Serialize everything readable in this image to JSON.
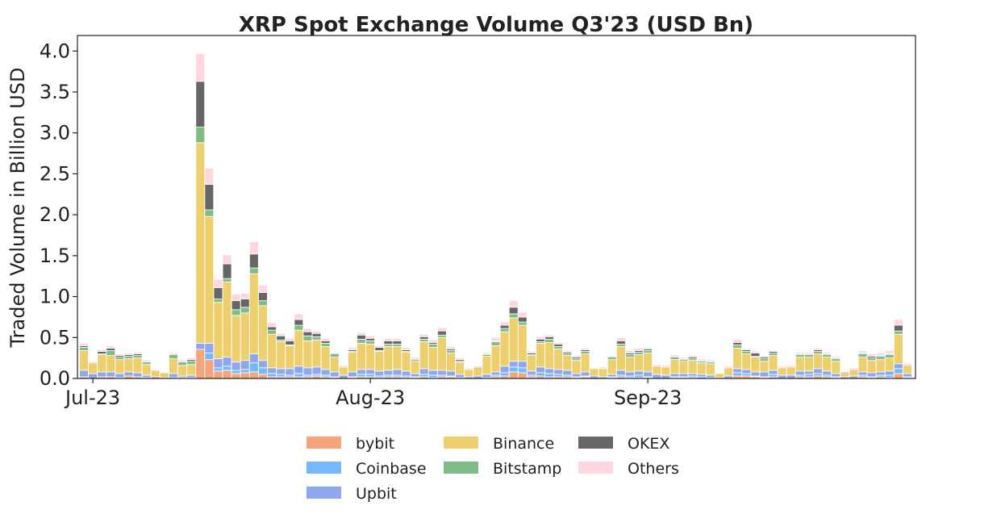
{
  "chart_data": {
    "type": "bar",
    "stacked": true,
    "title": "XRP Spot Exchange Volume Q3'23 (USD Bn)",
    "xlabel": "",
    "ylabel": "Traded Volume in Billion USD",
    "ylim": [
      0,
      4.19
    ],
    "yticks": [
      "0.0",
      "0.5",
      "1.0",
      "1.5",
      "2.0",
      "2.5",
      "3.0",
      "3.5",
      "4.0"
    ],
    "xticks": [
      {
        "date": "2023-07-01",
        "label": "Jul-23"
      },
      {
        "date": "2023-08-01",
        "label": "Aug-23"
      },
      {
        "date": "2023-09-01",
        "label": "Sep-23"
      }
    ],
    "grid": false,
    "legend_position": "bottom-center",
    "x": [
      "2023-06-30",
      "2023-07-01",
      "2023-07-02",
      "2023-07-03",
      "2023-07-04",
      "2023-07-05",
      "2023-07-06",
      "2023-07-07",
      "2023-07-08",
      "2023-07-09",
      "2023-07-10",
      "2023-07-11",
      "2023-07-12",
      "2023-07-13",
      "2023-07-14",
      "2023-07-15",
      "2023-07-16",
      "2023-07-17",
      "2023-07-18",
      "2023-07-19",
      "2023-07-20",
      "2023-07-21",
      "2023-07-22",
      "2023-07-23",
      "2023-07-24",
      "2023-07-25",
      "2023-07-26",
      "2023-07-27",
      "2023-07-28",
      "2023-07-29",
      "2023-07-30",
      "2023-07-31",
      "2023-08-01",
      "2023-08-02",
      "2023-08-03",
      "2023-08-04",
      "2023-08-05",
      "2023-08-06",
      "2023-08-07",
      "2023-08-08",
      "2023-08-09",
      "2023-08-10",
      "2023-08-11",
      "2023-08-12",
      "2023-08-13",
      "2023-08-14",
      "2023-08-15",
      "2023-08-16",
      "2023-08-17",
      "2023-08-18",
      "2023-08-19",
      "2023-08-20",
      "2023-08-21",
      "2023-08-22",
      "2023-08-23",
      "2023-08-24",
      "2023-08-25",
      "2023-08-26",
      "2023-08-27",
      "2023-08-28",
      "2023-08-29",
      "2023-08-30",
      "2023-08-31",
      "2023-09-01",
      "2023-09-02",
      "2023-09-03",
      "2023-09-04",
      "2023-09-05",
      "2023-09-06",
      "2023-09-07",
      "2023-09-08",
      "2023-09-09",
      "2023-09-10",
      "2023-09-11",
      "2023-09-12",
      "2023-09-13",
      "2023-09-14",
      "2023-09-15",
      "2023-09-16",
      "2023-09-17",
      "2023-09-18",
      "2023-09-19",
      "2023-09-20",
      "2023-09-21",
      "2023-09-22",
      "2023-09-23",
      "2023-09-24",
      "2023-09-25",
      "2023-09-26",
      "2023-09-27",
      "2023-09-28",
      "2023-09-29",
      "2023-09-30"
    ],
    "series": [
      {
        "name": "bybit",
        "color": "#f5a47c",
        "values": [
          0.02,
          0,
          0.02,
          0.02,
          0.01,
          0.03,
          0.02,
          0.01,
          0,
          0,
          0.01,
          0.01,
          0.01,
          0.355,
          0.23,
          0.09,
          0.1,
          0.06,
          0.07,
          0.08,
          0.05,
          0.02,
          0.02,
          0.02,
          0.02,
          0.02,
          0.03,
          0.02,
          0.01,
          0,
          0.01,
          0.02,
          0.02,
          0.01,
          0.02,
          0.02,
          0.01,
          0.01,
          0.02,
          0.01,
          0.02,
          0.02,
          0,
          0,
          0,
          0,
          0.02,
          0.03,
          0.08,
          0.07,
          0.02,
          0.03,
          0.02,
          0.02,
          0.02,
          0.01,
          0.02,
          0,
          0,
          0.01,
          0.02,
          0.01,
          0.01,
          0.01,
          0,
          0,
          0.01,
          0.01,
          0.01,
          0,
          0,
          0,
          0,
          0.03,
          0.03,
          0.02,
          0.01,
          0.02,
          0,
          0,
          0.02,
          0.02,
          0.03,
          0.02,
          0.01,
          0,
          0,
          0.02,
          0.01,
          0.02,
          0.01,
          0.06,
          0.01
        ]
      },
      {
        "name": "Coinbase",
        "color": "#74b9ff",
        "values": [
          0,
          0,
          0,
          0,
          0,
          0,
          0,
          0,
          0,
          0,
          0,
          0,
          0,
          0,
          0.08,
          0.04,
          0.05,
          0.04,
          0.04,
          0.11,
          0.08,
          0.04,
          0.03,
          0.02,
          0.04,
          0.02,
          0.02,
          0.02,
          0.01,
          0,
          0.01,
          0.03,
          0.03,
          0.02,
          0.02,
          0.02,
          0.02,
          0.01,
          0.03,
          0.03,
          0.02,
          0.01,
          0.01,
          0,
          0,
          0.01,
          0.02,
          0.04,
          0.06,
          0.06,
          0.02,
          0.04,
          0.04,
          0.03,
          0.02,
          0.01,
          0.01,
          0,
          0,
          0.01,
          0.02,
          0.02,
          0.03,
          0.01,
          0,
          0,
          0.01,
          0.01,
          0.02,
          0.02,
          0.01,
          0,
          0,
          0.04,
          0.03,
          0.01,
          0.01,
          0.03,
          0,
          0,
          0.02,
          0.03,
          0.03,
          0.02,
          0.01,
          0,
          0,
          0.02,
          0.01,
          0.02,
          0.03,
          0.06,
          0.01
        ]
      },
      {
        "name": "Upbit",
        "color": "#8ea7ee",
        "values": [
          0.08,
          0.06,
          0.06,
          0.06,
          0.05,
          0.05,
          0.05,
          0.03,
          0.02,
          0.01,
          0.05,
          0.02,
          0.03,
          0.075,
          0.12,
          0.11,
          0.11,
          0.1,
          0.11,
          0.11,
          0.09,
          0.07,
          0.07,
          0.08,
          0.09,
          0.09,
          0.09,
          0.07,
          0.06,
          0.04,
          0.06,
          0.06,
          0.06,
          0.06,
          0.06,
          0.07,
          0.06,
          0.04,
          0.07,
          0.06,
          0.06,
          0.06,
          0.04,
          0.02,
          0.03,
          0.04,
          0.04,
          0.08,
          0.07,
          0.08,
          0.05,
          0.07,
          0.06,
          0.06,
          0.06,
          0.04,
          0.05,
          0.03,
          0.02,
          0.03,
          0.06,
          0.05,
          0.05,
          0.06,
          0.05,
          0.04,
          0.04,
          0.04,
          0.03,
          0.03,
          0.03,
          0.01,
          0.03,
          0.05,
          0.05,
          0.05,
          0.06,
          0.05,
          0.04,
          0.04,
          0.05,
          0.04,
          0.06,
          0.05,
          0.04,
          0.02,
          0.03,
          0.04,
          0.05,
          0.04,
          0.05,
          0.06,
          0.04
        ]
      },
      {
        "name": "Binance",
        "color": "#eecf6d",
        "values": [
          0.24,
          0.13,
          0.21,
          0.2,
          0.17,
          0.16,
          0.18,
          0.13,
          0.08,
          0.06,
          0.18,
          0.13,
          0.13,
          2.45,
          1.55,
          0.69,
          0.92,
          0.57,
          0.58,
          0.98,
          0.67,
          0.41,
          0.33,
          0.28,
          0.44,
          0.33,
          0.33,
          0.28,
          0.18,
          0.1,
          0.24,
          0.32,
          0.31,
          0.24,
          0.29,
          0.28,
          0.23,
          0.15,
          0.33,
          0.28,
          0.4,
          0.22,
          0.15,
          0.09,
          0.11,
          0.22,
          0.32,
          0.42,
          0.53,
          0.44,
          0.19,
          0.29,
          0.32,
          0.25,
          0.18,
          0.16,
          0.22,
          0.09,
          0.1,
          0.18,
          0.29,
          0.18,
          0.2,
          0.23,
          0.1,
          0.1,
          0.17,
          0.15,
          0.16,
          0.14,
          0.14,
          0.05,
          0.1,
          0.25,
          0.19,
          0.18,
          0.13,
          0.18,
          0.09,
          0.1,
          0.17,
          0.17,
          0.18,
          0.17,
          0.15,
          0.06,
          0.08,
          0.18,
          0.15,
          0.15,
          0.16,
          0.36,
          0.1
        ]
      },
      {
        "name": "Bitstamp",
        "color": "#7fbc88",
        "values": [
          0.04,
          0,
          0.01,
          0.06,
          0.03,
          0.03,
          0.03,
          0.03,
          0,
          0,
          0.05,
          0.04,
          0.04,
          0.19,
          0.08,
          0.04,
          0.04,
          0.07,
          0.07,
          0.07,
          0.06,
          0.05,
          0.02,
          0.01,
          0.06,
          0.06,
          0.04,
          0.04,
          0.04,
          0.01,
          0.01,
          0.05,
          0.04,
          0.01,
          0.03,
          0.03,
          0.01,
          0.02,
          0.03,
          0.04,
          0.03,
          0.03,
          0.01,
          0,
          0,
          0.02,
          0.05,
          0.04,
          0.05,
          0.04,
          0.01,
          0.02,
          0.04,
          0.03,
          0.02,
          0.02,
          0.03,
          0,
          0,
          0.03,
          0.03,
          0.03,
          0.03,
          0.03,
          0,
          0,
          0.03,
          0.02,
          0.02,
          0.02,
          0.02,
          0,
          0,
          0.04,
          0.03,
          0.01,
          0.03,
          0.03,
          0,
          0,
          0.03,
          0.03,
          0.03,
          0.03,
          0.03,
          0,
          0,
          0.04,
          0.03,
          0.04,
          0.04,
          0.04,
          0
        ]
      },
      {
        "name": "OKEX",
        "color": "#666666",
        "values": [
          0.02,
          0.01,
          0.03,
          0.03,
          0.02,
          0.02,
          0.02,
          0.01,
          0,
          0,
          0.01,
          0.01,
          0.02,
          0.56,
          0.31,
          0.14,
          0.18,
          0.11,
          0.1,
          0.17,
          0.1,
          0.04,
          0.05,
          0.05,
          0.07,
          0.05,
          0.04,
          0.03,
          0.01,
          0.01,
          0.02,
          0.05,
          0.03,
          0.04,
          0.04,
          0.04,
          0.02,
          0.01,
          0.03,
          0.02,
          0.05,
          0.02,
          0.02,
          0.01,
          0.01,
          0.01,
          0.01,
          0.04,
          0.08,
          0.06,
          0.02,
          0.03,
          0.03,
          0.03,
          0.02,
          0.02,
          0.02,
          0,
          0,
          0.01,
          0.04,
          0.02,
          0.02,
          0.02,
          0,
          0,
          0.01,
          0.01,
          0.02,
          0.01,
          0.01,
          0,
          0,
          0.03,
          0.02,
          0.04,
          0.02,
          0.02,
          0,
          0,
          0.01,
          0.01,
          0.02,
          0.01,
          0.01,
          0,
          0,
          0.01,
          0.02,
          0.01,
          0.01,
          0.07,
          0.01
        ]
      },
      {
        "name": "Others",
        "color": "#ffd6de",
        "values": [
          0.03,
          0.01,
          0.02,
          0.03,
          0.02,
          0.02,
          0.02,
          0.02,
          0.01,
          0,
          0.02,
          0.02,
          0.02,
          0.34,
          0.2,
          0.1,
          0.11,
          0.08,
          0.07,
          0.15,
          0.09,
          0.05,
          0.03,
          0.03,
          0.07,
          0.04,
          0.03,
          0.03,
          0.01,
          0.01,
          0.03,
          0.03,
          0.03,
          0.02,
          0.03,
          0.03,
          0.03,
          0.02,
          0.03,
          0.03,
          0.04,
          0.03,
          0.02,
          0.01,
          0.01,
          0.02,
          0.04,
          0.04,
          0.08,
          0.06,
          0.02,
          0.03,
          0.02,
          0.02,
          0.02,
          0.02,
          0.02,
          0.01,
          0.02,
          0.01,
          0.04,
          0.03,
          0.03,
          0.02,
          0.02,
          0.02,
          0.02,
          0.02,
          0.02,
          0.02,
          0.02,
          0.01,
          0.02,
          0.04,
          0.02,
          0.02,
          0.02,
          0.01,
          0.02,
          0.02,
          0.02,
          0.02,
          0.02,
          0.02,
          0.02,
          0.01,
          0.02,
          0.03,
          0.03,
          0.03,
          0.04,
          0.07,
          0.02
        ]
      }
    ]
  }
}
